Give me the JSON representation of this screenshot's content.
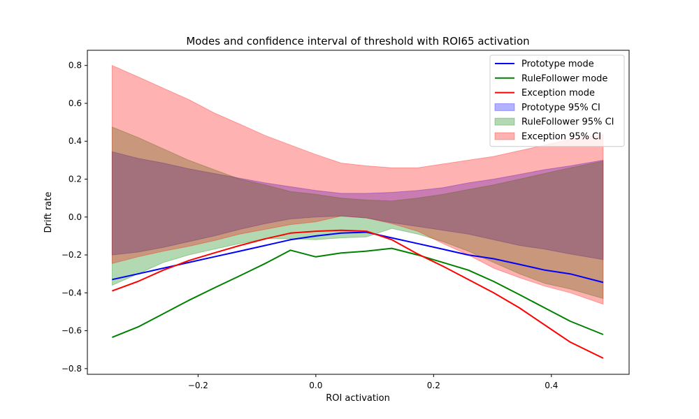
{
  "chart_data": {
    "type": "line",
    "title": "Modes and confidence interval of threshold with ROI65 activation",
    "xlabel": "ROI activation",
    "ylabel": "Drift rate",
    "xlim": [
      -0.388,
      0.532
    ],
    "ylim": [
      -0.83,
      0.88
    ],
    "xticks": [
      -0.2,
      0.0,
      0.2,
      0.4
    ],
    "xtick_labels": [
      "−0.2",
      "0.0",
      "0.2",
      "0.4"
    ],
    "yticks": [
      -0.8,
      -0.6,
      -0.4,
      -0.2,
      0.0,
      0.2,
      0.4,
      0.6,
      0.8
    ],
    "ytick_labels": [
      "−0.8",
      "−0.6",
      "−0.4",
      "−0.2",
      "0.0",
      "0.2",
      "0.4",
      "0.6",
      "0.8"
    ],
    "grid": false,
    "legend_position": "top-right",
    "x": [
      -0.346,
      -0.302,
      -0.259,
      -0.216,
      -0.173,
      -0.129,
      -0.086,
      -0.043,
      0.0,
      0.043,
      0.086,
      0.129,
      0.173,
      0.216,
      0.259,
      0.302,
      0.346,
      0.389,
      0.432,
      0.488
    ],
    "series": [
      {
        "name": "Prototype mode",
        "kind": "line",
        "color": "#0000ff",
        "values": [
          -0.33,
          -0.3,
          -0.27,
          -0.24,
          -0.21,
          -0.18,
          -0.15,
          -0.12,
          -0.1,
          -0.085,
          -0.08,
          -0.11,
          -0.14,
          -0.17,
          -0.2,
          -0.22,
          -0.25,
          -0.28,
          -0.3,
          -0.345
        ]
      },
      {
        "name": "RuleFollower mode",
        "kind": "line",
        "color": "#008000",
        "values": [
          -0.635,
          -0.58,
          -0.51,
          -0.44,
          -0.375,
          -0.31,
          -0.245,
          -0.175,
          -0.21,
          -0.19,
          -0.18,
          -0.165,
          -0.2,
          -0.24,
          -0.28,
          -0.34,
          -0.41,
          -0.48,
          -0.55,
          -0.62
        ]
      },
      {
        "name": "Exception mode",
        "kind": "line",
        "color": "#ff0000",
        "values": [
          -0.39,
          -0.34,
          -0.28,
          -0.23,
          -0.19,
          -0.15,
          -0.115,
          -0.085,
          -0.075,
          -0.07,
          -0.075,
          -0.12,
          -0.195,
          -0.26,
          -0.33,
          -0.4,
          -0.48,
          -0.57,
          -0.66,
          -0.745
        ]
      },
      {
        "name": "Prototype 95% CI",
        "kind": "band",
        "color": "#0000ff",
        "lower": [
          -0.2,
          -0.185,
          -0.16,
          -0.13,
          -0.1,
          -0.065,
          -0.035,
          -0.01,
          0.0,
          0.005,
          -0.005,
          -0.03,
          -0.05,
          -0.07,
          -0.09,
          -0.12,
          -0.15,
          -0.17,
          -0.195,
          -0.225
        ],
        "upper": [
          0.345,
          0.31,
          0.285,
          0.255,
          0.23,
          0.205,
          0.18,
          0.16,
          0.14,
          0.125,
          0.125,
          0.13,
          0.14,
          0.155,
          0.18,
          0.2,
          0.225,
          0.25,
          0.27,
          0.3
        ]
      },
      {
        "name": "RuleFollower 95% CI",
        "kind": "band",
        "color": "#008000",
        "lower": [
          -0.36,
          -0.3,
          -0.24,
          -0.2,
          -0.17,
          -0.14,
          -0.115,
          -0.115,
          -0.12,
          -0.11,
          -0.105,
          -0.06,
          -0.09,
          -0.13,
          -0.18,
          -0.24,
          -0.3,
          -0.35,
          -0.38,
          -0.43
        ],
        "upper": [
          0.475,
          0.42,
          0.36,
          0.3,
          0.25,
          0.2,
          0.17,
          0.135,
          0.12,
          0.1,
          0.09,
          0.085,
          0.1,
          0.12,
          0.145,
          0.17,
          0.2,
          0.23,
          0.26,
          0.295
        ]
      },
      {
        "name": "Exception 95% CI",
        "kind": "band",
        "color": "#ff0000",
        "lower": [
          -0.245,
          -0.21,
          -0.18,
          -0.155,
          -0.125,
          -0.09,
          -0.065,
          -0.04,
          -0.025,
          0.005,
          -0.005,
          -0.035,
          -0.075,
          -0.14,
          -0.2,
          -0.27,
          -0.32,
          -0.365,
          -0.4,
          -0.46
        ],
        "upper": [
          0.8,
          0.74,
          0.68,
          0.62,
          0.55,
          0.49,
          0.43,
          0.38,
          0.33,
          0.285,
          0.27,
          0.26,
          0.26,
          0.28,
          0.3,
          0.32,
          0.35,
          0.38,
          0.41,
          0.435
        ]
      }
    ]
  }
}
